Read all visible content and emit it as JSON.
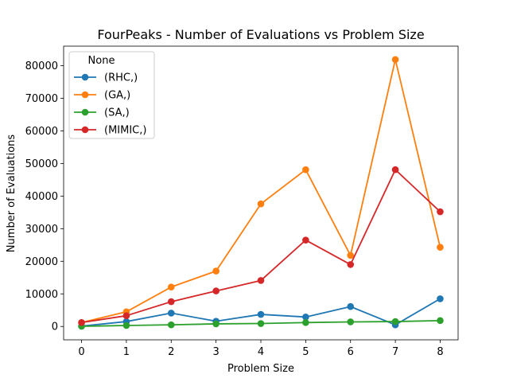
{
  "chart_data": {
    "type": "line",
    "title": "FourPeaks - Number of Evaluations vs Problem Size",
    "xlabel": "Problem Size",
    "ylabel": "Number of Evaluations",
    "x": [
      0,
      1,
      2,
      3,
      4,
      5,
      6,
      7,
      8
    ],
    "xlim": [
      -0.4,
      8.4
    ],
    "ylim": [
      -4100,
      86000
    ],
    "yticks": [
      0,
      10000,
      20000,
      30000,
      40000,
      50000,
      60000,
      70000,
      80000
    ],
    "grid": false,
    "legend": {
      "title": "None",
      "position": "top-left"
    },
    "series": [
      {
        "name": "(RHC,)",
        "color": "#1f77b4",
        "values": [
          100,
          1500,
          4100,
          1600,
          3700,
          2900,
          6100,
          500,
          8500
        ]
      },
      {
        "name": "(GA,)",
        "color": "#ff7f0e",
        "values": [
          1200,
          4500,
          12100,
          17000,
          37600,
          48100,
          21800,
          81900,
          24300
        ]
      },
      {
        "name": "(SA,)",
        "color": "#2ca02c",
        "values": [
          50,
          300,
          500,
          800,
          900,
          1200,
          1400,
          1500,
          1800
        ]
      },
      {
        "name": "(MIMIC,)",
        "color": "#d62728",
        "values": [
          1200,
          3300,
          7600,
          10900,
          14100,
          26500,
          19000,
          48100,
          35200
        ]
      }
    ]
  }
}
